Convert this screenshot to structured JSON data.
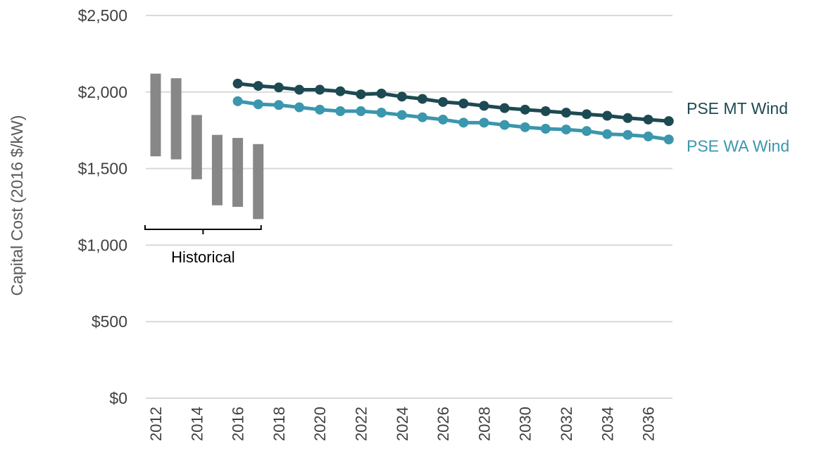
{
  "chart_data": {
    "type": "line",
    "xlabel": "",
    "ylabel": "Capital Cost (2016 $/kW)",
    "ylim": [
      0,
      2500
    ],
    "xlim": [
      2012,
      2037
    ],
    "y_ticks": [
      "$0",
      "$500",
      "$1,000",
      "$1,500",
      "$2,000",
      "$2,500"
    ],
    "y_tick_values": [
      0,
      500,
      1000,
      1500,
      2000,
      2500
    ],
    "x_ticks": [
      "2012",
      "2014",
      "2016",
      "2018",
      "2020",
      "2022",
      "2024",
      "2026",
      "2028",
      "2030",
      "2032",
      "2034",
      "2036"
    ],
    "x_tick_values": [
      2012,
      2014,
      2016,
      2018,
      2020,
      2022,
      2024,
      2026,
      2028,
      2030,
      2032,
      2034,
      2036
    ],
    "grid": "horizontal",
    "historical_label": "Historical",
    "historical_ranges": [
      {
        "x": 2012,
        "low": 1580,
        "high": 2120
      },
      {
        "x": 2013,
        "low": 1560,
        "high": 2090
      },
      {
        "x": 2014,
        "low": 1430,
        "high": 1850
      },
      {
        "x": 2015,
        "low": 1260,
        "high": 1720
      },
      {
        "x": 2016,
        "low": 1250,
        "high": 1700
      },
      {
        "x": 2017,
        "low": 1170,
        "high": 1660
      }
    ],
    "series": [
      {
        "name": "PSE MT Wind",
        "color": "#1d4a52",
        "x": [
          2016,
          2017,
          2018,
          2019,
          2020,
          2021,
          2022,
          2023,
          2024,
          2025,
          2026,
          2027,
          2028,
          2029,
          2030,
          2031,
          2032,
          2033,
          2034,
          2035,
          2036,
          2037
        ],
        "values": [
          2055,
          2040,
          2030,
          2015,
          2015,
          2005,
          1985,
          1990,
          1970,
          1955,
          1935,
          1925,
          1910,
          1895,
          1885,
          1875,
          1865,
          1855,
          1845,
          1830,
          1820,
          1810
        ]
      },
      {
        "name": "PSE WA Wind",
        "color": "#3a97ad",
        "x": [
          2016,
          2017,
          2018,
          2019,
          2020,
          2021,
          2022,
          2023,
          2024,
          2025,
          2026,
          2027,
          2028,
          2029,
          2030,
          2031,
          2032,
          2033,
          2034,
          2035,
          2036,
          2037
        ],
        "values": [
          1940,
          1920,
          1915,
          1900,
          1885,
          1875,
          1875,
          1865,
          1850,
          1835,
          1820,
          1800,
          1800,
          1785,
          1770,
          1760,
          1755,
          1745,
          1725,
          1720,
          1710,
          1690
        ]
      }
    ],
    "colors": {
      "grid": "#d9d9d9",
      "historical_bar": "#878787",
      "text": "#404040",
      "axis_title": "#595959"
    }
  }
}
